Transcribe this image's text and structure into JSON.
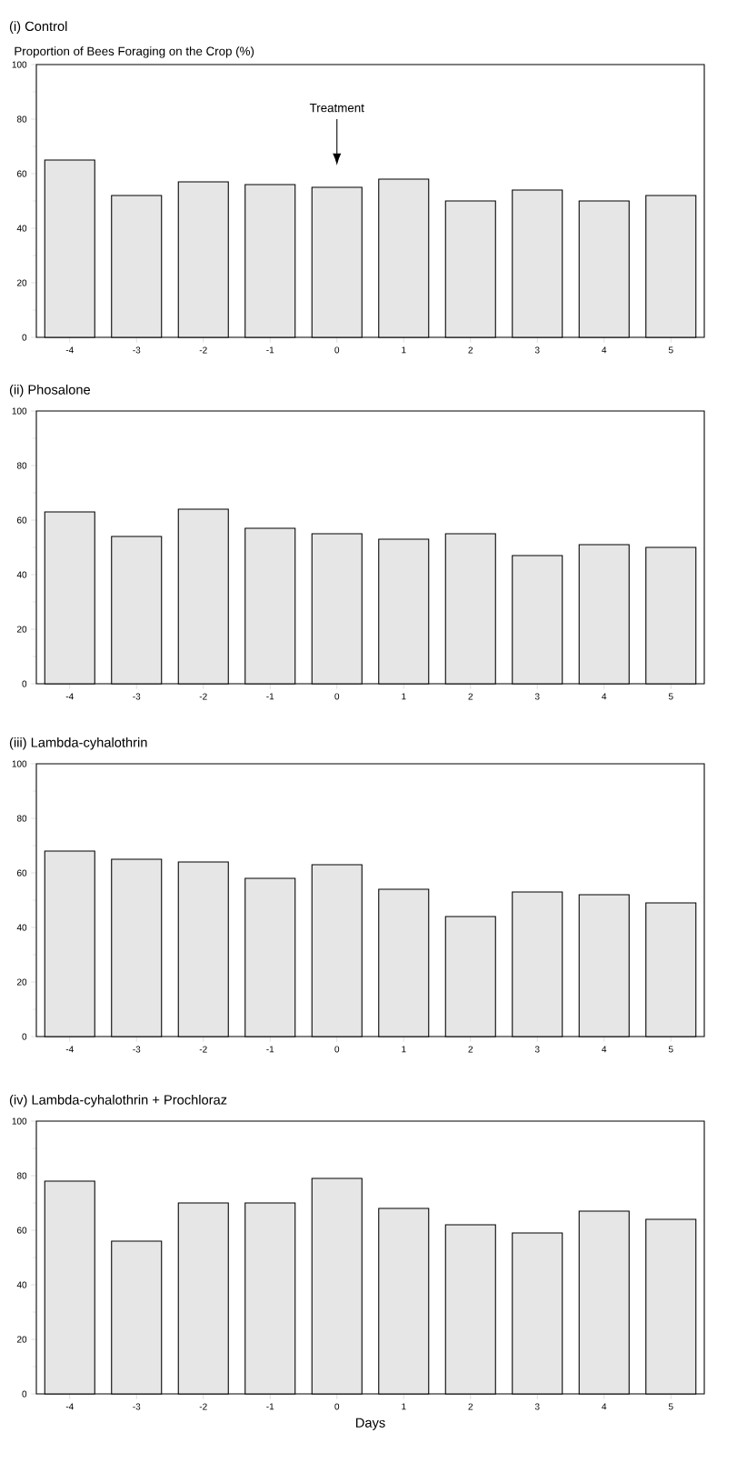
{
  "chart_data": [
    {
      "type": "bar",
      "title": "(i) Control",
      "ylabel": "Proportion of Bees Foraging on the Crop (%)",
      "categories": [
        "-4",
        "-3",
        "-2",
        "-1",
        "0",
        "1",
        "2",
        "3",
        "4",
        "5"
      ],
      "values": [
        65,
        52,
        57,
        56,
        55,
        58,
        50,
        54,
        50,
        52
      ],
      "color": "#e6e6e6",
      "ylim": [
        0,
        100
      ],
      "yticks": [
        0,
        20,
        40,
        60,
        80,
        100
      ],
      "annotations": [
        "Treatment"
      ]
    },
    {
      "type": "bar",
      "title": "(ii) Phosalone",
      "categories": [
        "-4",
        "-3",
        "-2",
        "-1",
        "0",
        "1",
        "2",
        "3",
        "4",
        "5"
      ],
      "values": [
        63,
        54,
        64,
        57,
        55,
        53,
        55,
        47,
        51,
        50
      ],
      "color": "#e6e6e6",
      "ylim": [
        0,
        100
      ],
      "yticks": [
        0,
        20,
        40,
        60,
        80,
        100
      ]
    },
    {
      "type": "bar",
      "title": "(iii) Lambda-cyhalothrin",
      "categories": [
        "-4",
        "-3",
        "-2",
        "-1",
        "0",
        "1",
        "2",
        "3",
        "4",
        "5"
      ],
      "values": [
        68,
        65,
        64,
        58,
        63,
        54,
        44,
        53,
        52,
        49
      ],
      "color": "#e6e6e6",
      "ylim": [
        0,
        100
      ],
      "yticks": [
        0,
        20,
        40,
        60,
        80,
        100
      ]
    },
    {
      "type": "bar",
      "title": "(iv) Lambda-cyhalothrin + Prochloraz",
      "xlabel": "Days",
      "categories": [
        "-4",
        "-3",
        "-2",
        "-1",
        "0",
        "1",
        "2",
        "3",
        "4",
        "5"
      ],
      "values": [
        78,
        56,
        70,
        70,
        79,
        68,
        62,
        59,
        67,
        64
      ],
      "color": "#e6e6e6",
      "ylim": [
        0,
        100
      ],
      "yticks": [
        0,
        20,
        40,
        60,
        80,
        100
      ]
    }
  ]
}
